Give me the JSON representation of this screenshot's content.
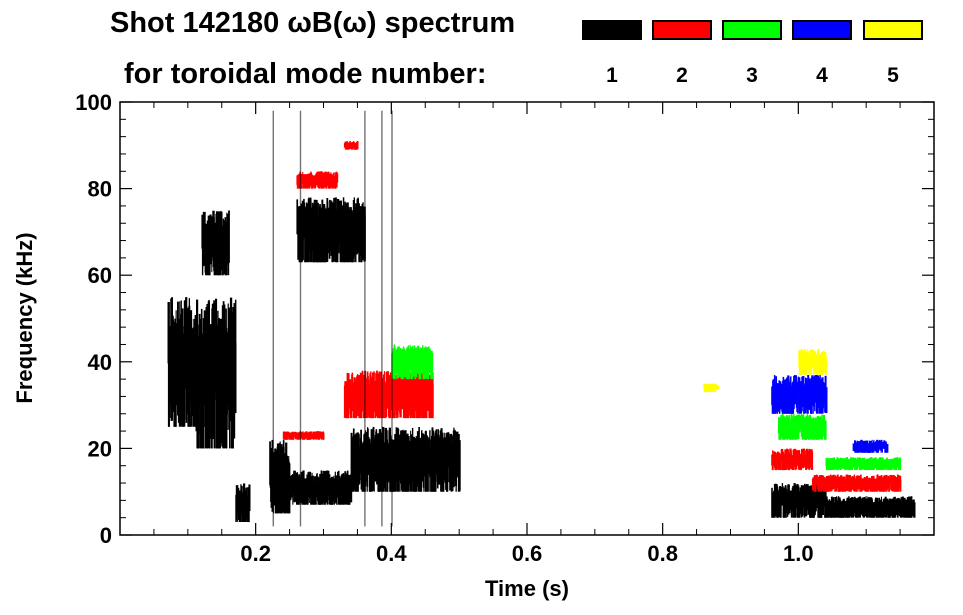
{
  "title": {
    "line1": "Shot 142180 ωB(ω) spectrum",
    "line2": "for toroidal mode number:"
  },
  "legend": [
    {
      "label": "1",
      "color": "#000000"
    },
    {
      "label": "2",
      "color": "#ff0000"
    },
    {
      "label": "3",
      "color": "#00ff00"
    },
    {
      "label": "4",
      "color": "#0000ff"
    },
    {
      "label": "5",
      "color": "#ffff00"
    }
  ],
  "chart_data": {
    "type": "scatter",
    "title": "Shot 142180 ωB(ω) spectrum",
    "xlabel": "Time (s)",
    "ylabel": "Frequency (kHz)",
    "xlim": [
      0.0,
      1.2
    ],
    "ylim": [
      0,
      100
    ],
    "xticks": [
      0.2,
      0.4,
      0.6,
      0.8,
      1.0
    ],
    "xtick_labels": [
      "0.2",
      "0.4",
      "0.6",
      "0.8",
      "1.0"
    ],
    "yticks": [
      0,
      20,
      40,
      60,
      80,
      100
    ],
    "ytick_labels": [
      "0",
      "20",
      "40",
      "60",
      "80",
      "100"
    ],
    "grid": false,
    "series": [
      {
        "name": "1",
        "color": "#000000",
        "regions": [
          {
            "t": [
              0.07,
              0.11
            ],
            "f": [
              25,
              55
            ]
          },
          {
            "t": [
              0.11,
              0.17
            ],
            "f": [
              20,
              55
            ]
          },
          {
            "t": [
              0.12,
              0.16
            ],
            "f": [
              60,
              75
            ]
          },
          {
            "t": [
              0.17,
              0.19
            ],
            "f": [
              3,
              12
            ]
          },
          {
            "t": [
              0.22,
              0.25
            ],
            "f": [
              5,
              22
            ]
          },
          {
            "t": [
              0.25,
              0.34
            ],
            "f": [
              7,
              15
            ]
          },
          {
            "t": [
              0.26,
              0.36
            ],
            "f": [
              63,
              78
            ]
          },
          {
            "t": [
              0.34,
              0.5
            ],
            "f": [
              10,
              25
            ]
          },
          {
            "t": [
              0.96,
              1.04
            ],
            "f": [
              4,
              12
            ]
          },
          {
            "t": [
              1.04,
              1.17
            ],
            "f": [
              4,
              9
            ]
          }
        ]
      },
      {
        "name": "2",
        "color": "#ff0000",
        "regions": [
          {
            "t": [
              0.26,
              0.32
            ],
            "f": [
              80,
              84
            ]
          },
          {
            "t": [
              0.33,
              0.35
            ],
            "f": [
              89,
              91
            ]
          },
          {
            "t": [
              0.33,
              0.46
            ],
            "f": [
              27,
              38
            ]
          },
          {
            "t": [
              0.24,
              0.3
            ],
            "f": [
              22,
              24
            ]
          },
          {
            "t": [
              0.96,
              1.02
            ],
            "f": [
              15,
              20
            ]
          },
          {
            "t": [
              1.02,
              1.15
            ],
            "f": [
              10,
              14
            ]
          }
        ]
      },
      {
        "name": "3",
        "color": "#00ff00",
        "regions": [
          {
            "t": [
              0.4,
              0.46
            ],
            "f": [
              36,
              44
            ]
          },
          {
            "t": [
              0.97,
              1.04
            ],
            "f": [
              22,
              28
            ]
          },
          {
            "t": [
              1.04,
              1.15
            ],
            "f": [
              15,
              18
            ]
          }
        ]
      },
      {
        "name": "4",
        "color": "#0000ff",
        "regions": [
          {
            "t": [
              0.96,
              1.04
            ],
            "f": [
              28,
              37
            ]
          },
          {
            "t": [
              1.08,
              1.13
            ],
            "f": [
              19,
              22
            ]
          }
        ]
      },
      {
        "name": "5",
        "color": "#ffff00",
        "regions": [
          {
            "t": [
              1.0,
              1.04
            ],
            "f": [
              37,
              43
            ]
          },
          {
            "t": [
              0.86,
              0.88
            ],
            "f": [
              33,
              35
            ]
          }
        ]
      }
    ]
  }
}
